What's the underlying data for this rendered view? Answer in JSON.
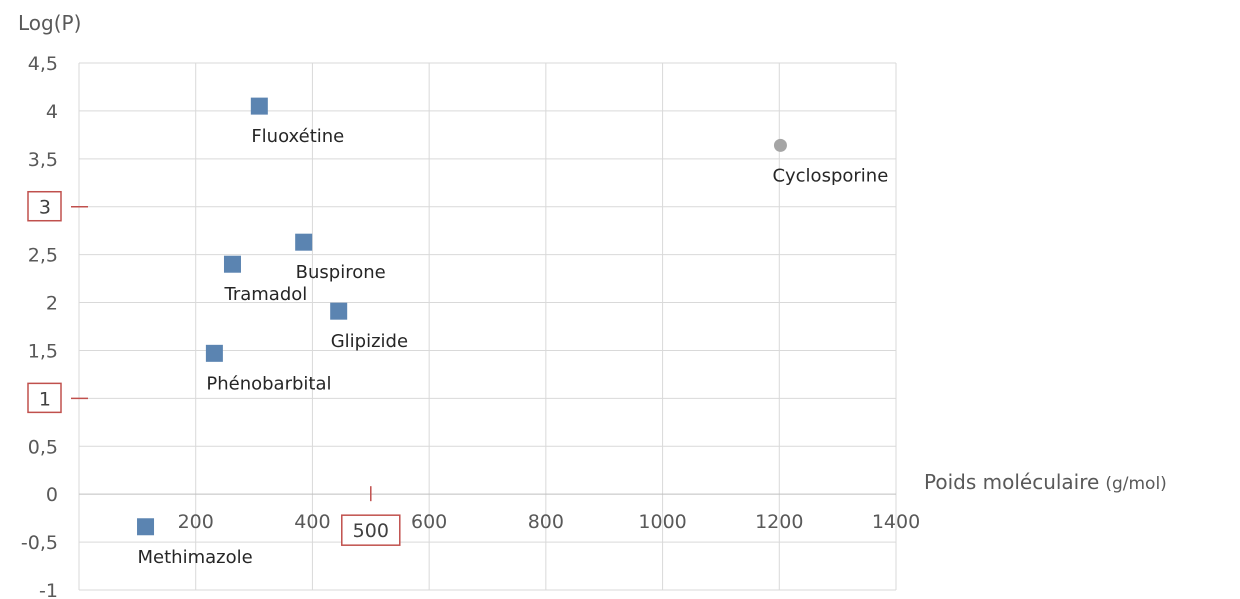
{
  "chart_data": {
    "type": "scatter",
    "ylabel": "Log(P)",
    "xlabel_main": "Poids moléculaire",
    "xlabel_unit": "(g/mol)",
    "xlim": [
      0,
      1400
    ],
    "ylim": [
      -1,
      4.5
    ],
    "x_ticks": [
      200,
      400,
      600,
      800,
      1000,
      1200,
      1400
    ],
    "x_tick_labels": [
      "200",
      "400",
      "600",
      "800",
      "1000",
      "1200",
      "1400"
    ],
    "y_ticks": [
      4.5,
      4,
      3.5,
      3,
      2.5,
      2,
      1.5,
      1,
      0.5,
      0,
      -0.5,
      -1
    ],
    "y_tick_labels": [
      "4,5",
      "4",
      "3,5",
      "3",
      "2,5",
      "2",
      "1,5",
      "1",
      "0,5",
      "0",
      "-0,5",
      "-1"
    ],
    "grid": true,
    "series": [
      {
        "marker": "square",
        "color": "#5B84B1",
        "points": [
          {
            "label": "Fluoxétine",
            "x": 309,
            "y": 4.05
          },
          {
            "label": "Buspirone",
            "x": 385,
            "y": 2.63
          },
          {
            "label": "Tramadol",
            "x": 263,
            "y": 2.4
          },
          {
            "label": "Glipizide",
            "x": 445,
            "y": 1.91
          },
          {
            "label": "Phénobarbital",
            "x": 232,
            "y": 1.47
          },
          {
            "label": "Methimazole",
            "x": 114,
            "y": -0.34
          }
        ]
      },
      {
        "marker": "circle",
        "color": "#A5A5A5",
        "points": [
          {
            "label": "Cyclosporine",
            "x": 1202,
            "y": 3.64
          }
        ]
      }
    ],
    "annotations": {
      "boxed_y_ticks": [
        "3",
        "1"
      ],
      "boxed_x_value": "500",
      "box_color": "#C0504D"
    }
  }
}
